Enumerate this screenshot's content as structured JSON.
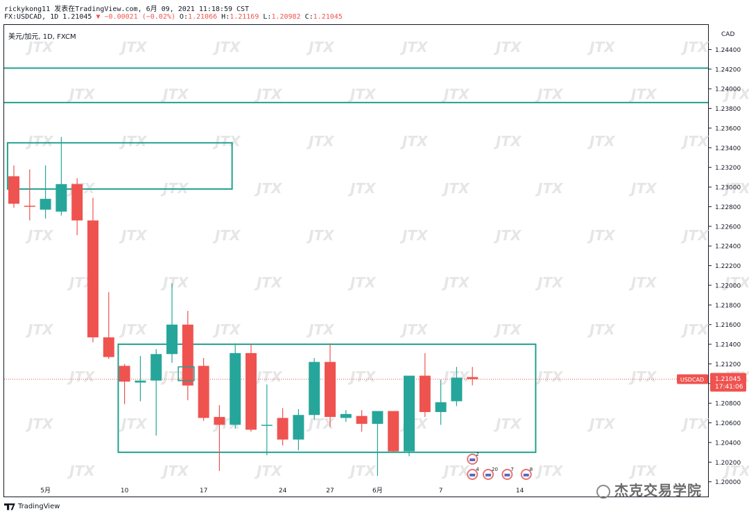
{
  "header": {
    "line1": "rickykong11 发表在TradingView.com, 6月 09, 2021 11:18:59 CST",
    "line2_prefix": "FX:USDCAD, 1D 1.21045",
    "change": "−0.00021 (−0.02%)",
    "o_label": "O:",
    "o_value": "1.21066",
    "h_label": "H:",
    "h_value": "1.21169",
    "l_label": "L:",
    "l_value": "1.20982",
    "c_label": "C:",
    "c_value": "1.21045"
  },
  "symbol_label": "美元/加元, 1D, FXCM",
  "footer": {
    "tradingview": "TradingView",
    "brand": "杰克交易学院"
  },
  "watermark_text": "JTX",
  "colors": {
    "up": "#26a69a",
    "down": "#ef5350",
    "zone": "#22a08f",
    "price_tag": "#ef5350",
    "axis_text": "#131722"
  },
  "chart_data": {
    "type": "candlestick",
    "currency_label": "CAD",
    "ylim": [
      1.1985,
      1.2465
    ],
    "y_ticks": [
      1.244,
      1.242,
      1.24,
      1.238,
      1.236,
      1.234,
      1.232,
      1.23,
      1.228,
      1.226,
      1.224,
      1.222,
      1.22,
      1.218,
      1.216,
      1.214,
      1.212,
      1.21,
      1.208,
      1.206,
      1.204,
      1.202,
      1.2
    ],
    "x_ticks": [
      {
        "index": 2,
        "label": "5月"
      },
      {
        "index": 7,
        "label": "10"
      },
      {
        "index": 12,
        "label": "17"
      },
      {
        "index": 17,
        "label": "24"
      },
      {
        "index": 20,
        "label": "27"
      },
      {
        "index": 23,
        "label": "6月"
      },
      {
        "index": 27,
        "label": "7"
      },
      {
        "index": 32,
        "label": "14"
      }
    ],
    "last_price": {
      "label": "USDCAD",
      "value": "1.21045",
      "countdown": "17:41:06",
      "price": 1.21045
    },
    "candles": [
      {
        "o": 1.2311,
        "h": 1.2322,
        "l": 1.2279,
        "c": 1.2283
      },
      {
        "o": 1.2281,
        "h": 1.2318,
        "l": 1.2266,
        "c": 1.228
      },
      {
        "o": 1.2277,
        "h": 1.2322,
        "l": 1.2268,
        "c": 1.2288
      },
      {
        "o": 1.2275,
        "h": 1.2351,
        "l": 1.2271,
        "c": 1.2303
      },
      {
        "o": 1.2303,
        "h": 1.2309,
        "l": 1.2251,
        "c": 1.2266
      },
      {
        "o": 1.2266,
        "h": 1.2289,
        "l": 1.2142,
        "c": 1.2147
      },
      {
        "o": 1.2147,
        "h": 1.2193,
        "l": 1.2125,
        "c": 1.2127
      },
      {
        "o": 1.2118,
        "h": 1.212,
        "l": 1.2079,
        "c": 1.2102
      },
      {
        "o": 1.2101,
        "h": 1.2128,
        "l": 1.2082,
        "c": 1.2103
      },
      {
        "o": 1.2103,
        "h": 1.2135,
        "l": 1.2047,
        "c": 1.213
      },
      {
        "o": 1.213,
        "h": 1.2202,
        "l": 1.2121,
        "c": 1.216
      },
      {
        "o": 1.216,
        "h": 1.2174,
        "l": 1.2083,
        "c": 1.2098
      },
      {
        "o": 1.2118,
        "h": 1.2126,
        "l": 1.2062,
        "c": 1.2065
      },
      {
        "o": 1.2066,
        "h": 1.2078,
        "l": 1.2011,
        "c": 1.2058
      },
      {
        "o": 1.2058,
        "h": 1.2141,
        "l": 1.2054,
        "c": 1.2131
      },
      {
        "o": 1.2131,
        "h": 1.214,
        "l": 1.2051,
        "c": 1.2053
      },
      {
        "o": 1.2058,
        "h": 1.2099,
        "l": 1.2027,
        "c": 1.2058
      },
      {
        "o": 1.2065,
        "h": 1.2075,
        "l": 1.2037,
        "c": 1.2043
      },
      {
        "o": 1.2043,
        "h": 1.2074,
        "l": 1.2032,
        "c": 1.2068
      },
      {
        "o": 1.2068,
        "h": 1.2126,
        "l": 1.2063,
        "c": 1.2122
      },
      {
        "o": 1.2122,
        "h": 1.2141,
        "l": 1.2056,
        "c": 1.2066
      },
      {
        "o": 1.2065,
        "h": 1.2073,
        "l": 1.2061,
        "c": 1.2069
      },
      {
        "o": 1.2067,
        "h": 1.2073,
        "l": 1.2051,
        "c": 1.2059
      },
      {
        "o": 1.2059,
        "h": 1.207,
        "l": 1.2006,
        "c": 1.2072
      },
      {
        "o": 1.2072,
        "h": 1.2072,
        "l": 1.203,
        "c": 1.2031
      },
      {
        "o": 1.2031,
        "h": 1.2108,
        "l": 1.2026,
        "c": 1.2108
      },
      {
        "o": 1.2108,
        "h": 1.2131,
        "l": 1.2066,
        "c": 1.2071
      },
      {
        "o": 1.2071,
        "h": 1.2104,
        "l": 1.2058,
        "c": 1.2081
      },
      {
        "o": 1.2082,
        "h": 1.2117,
        "l": 1.2077,
        "c": 1.2106
      },
      {
        "o": 1.21066,
        "h": 1.21169,
        "l": 1.20982,
        "c": 1.21045
      }
    ],
    "horizontal_lines": [
      1.2421,
      1.2386
    ],
    "zones": [
      {
        "i0": -0.4,
        "i1": 13.8,
        "y_top": 1.2345,
        "y_bottom": 1.2298
      },
      {
        "i0": 6.6,
        "i1": 33.0,
        "y_top": 1.214,
        "y_bottom": 1.203
      }
    ],
    "small_box": {
      "i0": 10.4,
      "i1": 11.4,
      "y_top": 1.2117,
      "y_bottom": 1.2103
    },
    "event_icons": [
      {
        "index": 29.0,
        "count": "2",
        "row": 0
      },
      {
        "index": 29.0,
        "count": "4",
        "row": 1
      },
      {
        "index": 30.0,
        "count": "20",
        "row": 1
      },
      {
        "index": 31.2,
        "count": "7",
        "row": 1
      },
      {
        "index": 32.4,
        "count": "8",
        "row": 1
      }
    ]
  }
}
